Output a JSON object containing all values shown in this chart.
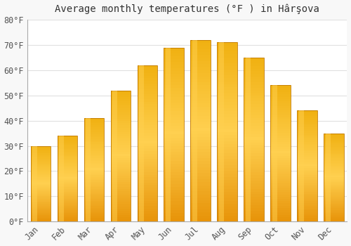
{
  "title": "Average monthly temperatures (°F ) in Hârşova",
  "months": [
    "Jan",
    "Feb",
    "Mar",
    "Apr",
    "May",
    "Jun",
    "Jul",
    "Aug",
    "Sep",
    "Oct",
    "Nov",
    "Dec"
  ],
  "values": [
    30,
    34,
    41,
    52,
    62,
    69,
    72,
    71,
    65,
    54,
    44,
    35
  ],
  "ylim": [
    0,
    80
  ],
  "yticks": [
    0,
    10,
    20,
    30,
    40,
    50,
    60,
    70,
    80
  ],
  "ytick_labels": [
    "0°F",
    "10°F",
    "20°F",
    "30°F",
    "40°F",
    "50°F",
    "60°F",
    "70°F",
    "80°F"
  ],
  "bar_color_dark": "#E8940A",
  "bar_color_mid": "#FFBA1A",
  "bar_color_light": "#FFD050",
  "bar_edge_color": "#C07800",
  "background_color": "#F8F8F8",
  "plot_bg_color": "#FFFFFF",
  "grid_color": "#E0E0E0",
  "title_fontsize": 10,
  "tick_fontsize": 8.5,
  "bar_width": 0.75
}
